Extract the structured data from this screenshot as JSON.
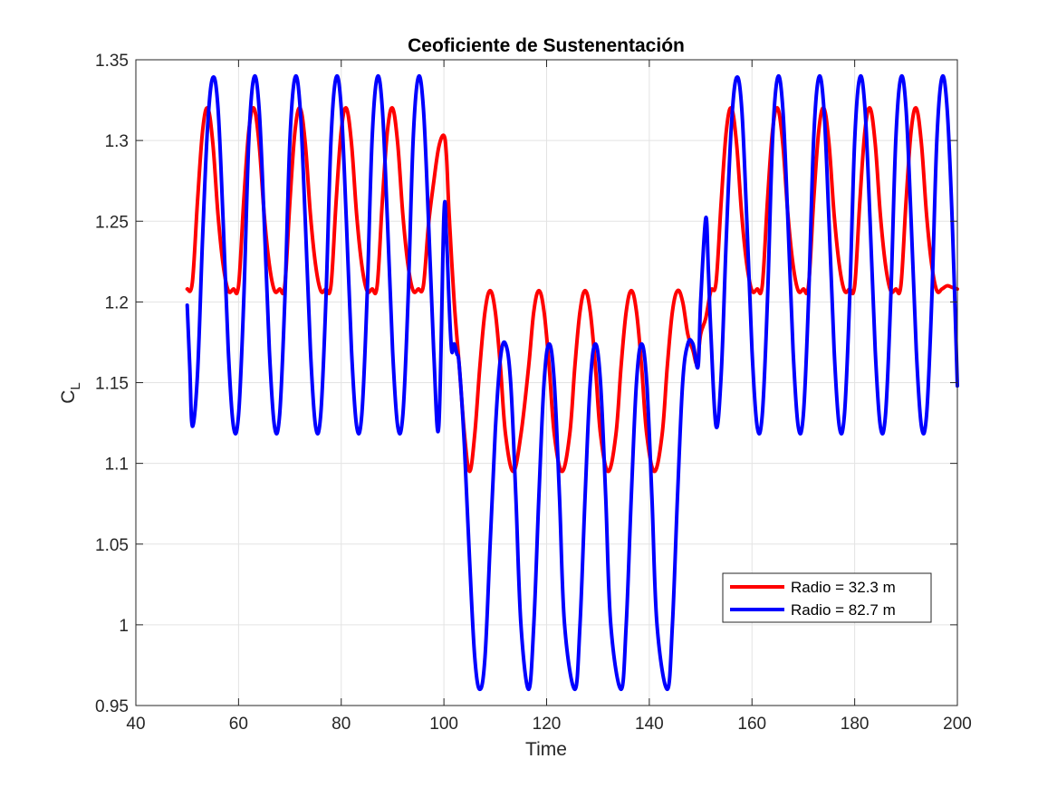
{
  "chart_data": {
    "type": "line",
    "title": "Ceoficiente de Sustenentación",
    "xlabel": "Time",
    "ylabel_main": "C",
    "ylabel_sub": "L",
    "xlim": [
      40,
      200
    ],
    "ylim": [
      0.95,
      1.35
    ],
    "xticks": [
      40,
      60,
      80,
      100,
      120,
      140,
      160,
      180,
      200
    ],
    "yticks": [
      0.95,
      1.0,
      1.05,
      1.1,
      1.15,
      1.2,
      1.25,
      1.3,
      1.35
    ],
    "xtick_labels": [
      "40",
      "60",
      "80",
      "100",
      "120",
      "140",
      "160",
      "180",
      "200"
    ],
    "ytick_labels": [
      "0.95",
      "1",
      "1.05",
      "1.1",
      "1.15",
      "1.2",
      "1.25",
      "1.3",
      "1.35"
    ],
    "grid": true,
    "legend_position": "lower-right",
    "series": [
      {
        "name": "Radio = 32.3 m",
        "color": "#ff0000",
        "points": [
          [
            50.0,
            1.208
          ],
          [
            51.0,
            1.212
          ],
          [
            52.0,
            1.262
          ],
          [
            53.0,
            1.306
          ],
          [
            54.0,
            1.32
          ],
          [
            55.0,
            1.298
          ],
          [
            56.0,
            1.254
          ],
          [
            57.0,
            1.223
          ],
          [
            58.0,
            1.207
          ],
          [
            59.0,
            1.208
          ],
          [
            60.0,
            1.21
          ],
          [
            61.0,
            1.262
          ],
          [
            62.0,
            1.306
          ],
          [
            63.0,
            1.32
          ],
          [
            64.0,
            1.298
          ],
          [
            65.0,
            1.254
          ],
          [
            66.0,
            1.223
          ],
          [
            67.0,
            1.207
          ],
          [
            68.0,
            1.208
          ],
          [
            69.0,
            1.21
          ],
          [
            70.0,
            1.262
          ],
          [
            71.0,
            1.306
          ],
          [
            72.0,
            1.32
          ],
          [
            73.0,
            1.298
          ],
          [
            74.0,
            1.254
          ],
          [
            75.0,
            1.223
          ],
          [
            76.0,
            1.207
          ],
          [
            77.0,
            1.208
          ],
          [
            78.0,
            1.21
          ],
          [
            79.0,
            1.262
          ],
          [
            80.0,
            1.306
          ],
          [
            81.0,
            1.32
          ],
          [
            82.0,
            1.298
          ],
          [
            83.0,
            1.254
          ],
          [
            84.0,
            1.223
          ],
          [
            85.0,
            1.207
          ],
          [
            86.0,
            1.208
          ],
          [
            87.0,
            1.21
          ],
          [
            88.0,
            1.262
          ],
          [
            89.0,
            1.306
          ],
          [
            90.0,
            1.32
          ],
          [
            91.0,
            1.298
          ],
          [
            92.0,
            1.254
          ],
          [
            93.0,
            1.223
          ],
          [
            94.0,
            1.207
          ],
          [
            95.0,
            1.208
          ],
          [
            96.0,
            1.21
          ],
          [
            97.0,
            1.248
          ],
          [
            98.0,
            1.274
          ],
          [
            99.0,
            1.296
          ],
          [
            100.0,
            1.303
          ],
          [
            100.5,
            1.29
          ],
          [
            101.0,
            1.255
          ],
          [
            102.0,
            1.2
          ],
          [
            103.0,
            1.16
          ],
          [
            104.0,
            1.118
          ],
          [
            105.0,
            1.095
          ],
          [
            106.0,
            1.118
          ],
          [
            107.0,
            1.16
          ],
          [
            108.0,
            1.194
          ],
          [
            109.0,
            1.207
          ],
          [
            110.0,
            1.194
          ],
          [
            111.0,
            1.16
          ],
          [
            112.0,
            1.118
          ],
          [
            113.5,
            1.095
          ],
          [
            115.0,
            1.118
          ],
          [
            116.5,
            1.16
          ],
          [
            117.5,
            1.194
          ],
          [
            118.5,
            1.207
          ],
          [
            119.5,
            1.194
          ],
          [
            120.5,
            1.16
          ],
          [
            121.5,
            1.118
          ],
          [
            123.0,
            1.095
          ],
          [
            124.5,
            1.118
          ],
          [
            125.5,
            1.16
          ],
          [
            126.5,
            1.194
          ],
          [
            127.5,
            1.207
          ],
          [
            128.5,
            1.194
          ],
          [
            129.5,
            1.16
          ],
          [
            130.5,
            1.118
          ],
          [
            132.0,
            1.095
          ],
          [
            133.5,
            1.118
          ],
          [
            134.5,
            1.16
          ],
          [
            135.5,
            1.194
          ],
          [
            136.5,
            1.207
          ],
          [
            137.5,
            1.194
          ],
          [
            138.5,
            1.16
          ],
          [
            139.5,
            1.118
          ],
          [
            141.0,
            1.095
          ],
          [
            142.5,
            1.118
          ],
          [
            143.5,
            1.16
          ],
          [
            144.5,
            1.194
          ],
          [
            145.5,
            1.207
          ],
          [
            146.5,
            1.2
          ],
          [
            147.5,
            1.18
          ],
          [
            148.5,
            1.17
          ],
          [
            149.3,
            1.162
          ],
          [
            150.0,
            1.18
          ],
          [
            151.0,
            1.19
          ],
          [
            152.0,
            1.207
          ],
          [
            153.0,
            1.212
          ],
          [
            154.0,
            1.262
          ],
          [
            155.0,
            1.306
          ],
          [
            156.0,
            1.32
          ],
          [
            157.0,
            1.298
          ],
          [
            158.0,
            1.254
          ],
          [
            159.0,
            1.223
          ],
          [
            160.0,
            1.207
          ],
          [
            161.0,
            1.208
          ],
          [
            162.0,
            1.21
          ],
          [
            163.0,
            1.262
          ],
          [
            164.0,
            1.306
          ],
          [
            165.0,
            1.32
          ],
          [
            166.0,
            1.298
          ],
          [
            167.0,
            1.254
          ],
          [
            168.0,
            1.223
          ],
          [
            169.0,
            1.207
          ],
          [
            170.0,
            1.208
          ],
          [
            171.0,
            1.21
          ],
          [
            172.0,
            1.262
          ],
          [
            173.0,
            1.306
          ],
          [
            174.0,
            1.32
          ],
          [
            175.0,
            1.298
          ],
          [
            176.0,
            1.254
          ],
          [
            177.0,
            1.223
          ],
          [
            178.0,
            1.207
          ],
          [
            179.0,
            1.208
          ],
          [
            180.0,
            1.21
          ],
          [
            181.0,
            1.262
          ],
          [
            182.0,
            1.306
          ],
          [
            183.0,
            1.32
          ],
          [
            184.0,
            1.298
          ],
          [
            185.0,
            1.254
          ],
          [
            186.0,
            1.223
          ],
          [
            187.0,
            1.207
          ],
          [
            188.0,
            1.208
          ],
          [
            189.0,
            1.21
          ],
          [
            190.0,
            1.262
          ],
          [
            191.0,
            1.306
          ],
          [
            192.0,
            1.32
          ],
          [
            193.0,
            1.298
          ],
          [
            194.0,
            1.254
          ],
          [
            195.0,
            1.223
          ],
          [
            196.0,
            1.207
          ],
          [
            197.0,
            1.208
          ],
          [
            198.0,
            1.21
          ],
          [
            199.0,
            1.209
          ],
          [
            200.0,
            1.208
          ]
        ]
      },
      {
        "name": "Radio = 82.7 m",
        "color": "#0000ff",
        "points": [
          [
            50.0,
            1.198
          ],
          [
            50.5,
            1.16
          ],
          [
            51.0,
            1.123
          ],
          [
            52.0,
            1.155
          ],
          [
            53.0,
            1.24
          ],
          [
            54.0,
            1.31
          ],
          [
            55.0,
            1.339
          ],
          [
            56.0,
            1.32
          ],
          [
            57.0,
            1.25
          ],
          [
            58.0,
            1.17
          ],
          [
            59.0,
            1.123
          ],
          [
            60.0,
            1.13
          ],
          [
            61.0,
            1.2
          ],
          [
            62.0,
            1.3
          ],
          [
            63.0,
            1.339
          ],
          [
            64.0,
            1.32
          ],
          [
            65.0,
            1.25
          ],
          [
            66.0,
            1.17
          ],
          [
            67.0,
            1.123
          ],
          [
            68.0,
            1.13
          ],
          [
            69.0,
            1.2
          ],
          [
            70.0,
            1.3
          ],
          [
            71.0,
            1.339
          ],
          [
            72.0,
            1.32
          ],
          [
            73.0,
            1.25
          ],
          [
            74.0,
            1.17
          ],
          [
            75.0,
            1.123
          ],
          [
            76.0,
            1.13
          ],
          [
            77.0,
            1.2
          ],
          [
            78.0,
            1.3
          ],
          [
            79.0,
            1.339
          ],
          [
            80.0,
            1.32
          ],
          [
            81.0,
            1.25
          ],
          [
            82.0,
            1.17
          ],
          [
            83.0,
            1.123
          ],
          [
            84.0,
            1.13
          ],
          [
            85.0,
            1.2
          ],
          [
            86.0,
            1.3
          ],
          [
            87.0,
            1.339
          ],
          [
            88.0,
            1.32
          ],
          [
            89.0,
            1.25
          ],
          [
            90.0,
            1.17
          ],
          [
            91.0,
            1.123
          ],
          [
            92.0,
            1.13
          ],
          [
            93.0,
            1.2
          ],
          [
            94.0,
            1.3
          ],
          [
            95.0,
            1.339
          ],
          [
            96.0,
            1.32
          ],
          [
            97.0,
            1.25
          ],
          [
            98.0,
            1.17
          ],
          [
            99.0,
            1.123
          ],
          [
            100.0,
            1.254
          ],
          [
            100.5,
            1.24
          ],
          [
            101.0,
            1.2
          ],
          [
            101.5,
            1.17
          ],
          [
            102.0,
            1.174
          ],
          [
            102.5,
            1.168
          ],
          [
            103.0,
            1.16
          ],
          [
            104.0,
            1.11
          ],
          [
            105.0,
            1.04
          ],
          [
            106.0,
            0.98
          ],
          [
            107.0,
            0.96
          ],
          [
            108.0,
            0.98
          ],
          [
            109.0,
            1.05
          ],
          [
            110.0,
            1.12
          ],
          [
            111.0,
            1.165
          ],
          [
            112.0,
            1.174
          ],
          [
            113.0,
            1.15
          ],
          [
            114.0,
            1.08
          ],
          [
            115.0,
            1.0
          ],
          [
            116.5,
            0.96
          ],
          [
            117.5,
            1.0
          ],
          [
            118.5,
            1.08
          ],
          [
            119.5,
            1.15
          ],
          [
            120.5,
            1.174
          ],
          [
            121.5,
            1.15
          ],
          [
            122.5,
            1.08
          ],
          [
            123.5,
            1.0
          ],
          [
            125.5,
            0.96
          ],
          [
            126.5,
            1.0
          ],
          [
            127.5,
            1.08
          ],
          [
            128.5,
            1.15
          ],
          [
            129.5,
            1.174
          ],
          [
            130.5,
            1.15
          ],
          [
            131.5,
            1.08
          ],
          [
            132.5,
            1.0
          ],
          [
            134.5,
            0.96
          ],
          [
            135.5,
            1.0
          ],
          [
            136.5,
            1.08
          ],
          [
            137.5,
            1.15
          ],
          [
            138.5,
            1.174
          ],
          [
            139.5,
            1.15
          ],
          [
            140.5,
            1.08
          ],
          [
            141.5,
            1.0
          ],
          [
            143.5,
            0.96
          ],
          [
            144.5,
            1.0
          ],
          [
            145.5,
            1.08
          ],
          [
            146.5,
            1.15
          ],
          [
            147.5,
            1.174
          ],
          [
            148.5,
            1.174
          ],
          [
            149.5,
            1.16
          ],
          [
            150.0,
            1.2
          ],
          [
            151.0,
            1.252
          ],
          [
            151.5,
            1.22
          ],
          [
            152.0,
            1.18
          ],
          [
            153.0,
            1.123
          ],
          [
            154.0,
            1.155
          ],
          [
            155.0,
            1.24
          ],
          [
            156.0,
            1.31
          ],
          [
            157.0,
            1.339
          ],
          [
            158.0,
            1.32
          ],
          [
            159.0,
            1.25
          ],
          [
            160.0,
            1.17
          ],
          [
            161.0,
            1.123
          ],
          [
            162.0,
            1.13
          ],
          [
            163.0,
            1.2
          ],
          [
            164.0,
            1.3
          ],
          [
            165.0,
            1.339
          ],
          [
            166.0,
            1.32
          ],
          [
            167.0,
            1.25
          ],
          [
            168.0,
            1.17
          ],
          [
            169.0,
            1.123
          ],
          [
            170.0,
            1.13
          ],
          [
            171.0,
            1.2
          ],
          [
            172.0,
            1.3
          ],
          [
            173.0,
            1.339
          ],
          [
            174.0,
            1.32
          ],
          [
            175.0,
            1.25
          ],
          [
            176.0,
            1.17
          ],
          [
            177.0,
            1.123
          ],
          [
            178.0,
            1.13
          ],
          [
            179.0,
            1.2
          ],
          [
            180.0,
            1.3
          ],
          [
            181.0,
            1.339
          ],
          [
            182.0,
            1.32
          ],
          [
            183.0,
            1.25
          ],
          [
            184.0,
            1.17
          ],
          [
            185.0,
            1.123
          ],
          [
            186.0,
            1.13
          ],
          [
            187.0,
            1.2
          ],
          [
            188.0,
            1.3
          ],
          [
            189.0,
            1.339
          ],
          [
            190.0,
            1.32
          ],
          [
            191.0,
            1.25
          ],
          [
            192.0,
            1.17
          ],
          [
            193.0,
            1.123
          ],
          [
            194.0,
            1.13
          ],
          [
            195.0,
            1.2
          ],
          [
            196.0,
            1.3
          ],
          [
            197.0,
            1.339
          ],
          [
            198.0,
            1.32
          ],
          [
            199.0,
            1.25
          ],
          [
            200.0,
            1.148
          ]
        ]
      }
    ]
  }
}
